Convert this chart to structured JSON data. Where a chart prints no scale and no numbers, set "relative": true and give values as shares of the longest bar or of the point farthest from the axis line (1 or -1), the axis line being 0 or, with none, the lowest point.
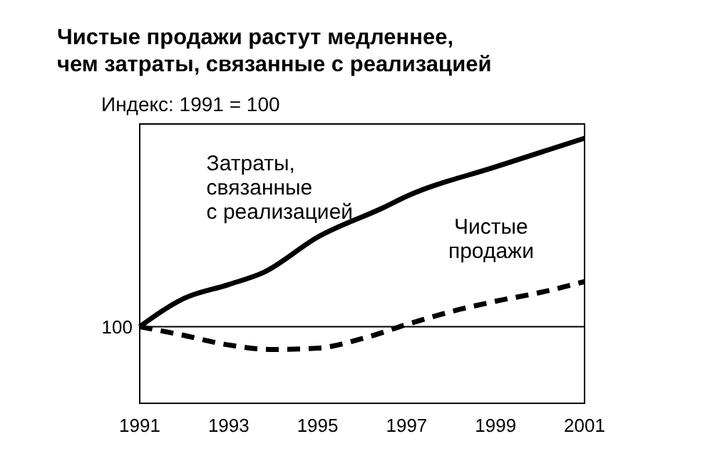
{
  "chart_data": {
    "type": "line",
    "relative": true,
    "title": "Чистые продажи растут медленнее,\nчем затраты, связанные с реализацией",
    "ylabel": "Индекс: 1991 = 100",
    "xlim": [
      1991,
      2001
    ],
    "xticks": [
      1991,
      1993,
      1995,
      1997,
      1999,
      2001
    ],
    "grid": false,
    "marker": "none",
    "ref_lines": [
      {
        "axis": "y",
        "value": 0.289,
        "color": "#000000"
      }
    ],
    "annotations": [
      {
        "text": "100",
        "x": 1991,
        "y": 0.289
      }
    ],
    "series": [
      {
        "name": "Затраты,\nсвязанные\nс реализацией",
        "color": "#000000",
        "line_style": "solid",
        "x": [
          1991,
          1992,
          1993,
          1993.8,
          1995,
          1996.5,
          1997,
          1999,
          2001
        ],
        "values": [
          0.289,
          0.396,
          0.448,
          0.495,
          0.627,
          0.74,
          0.781,
          0.892,
          1
        ]
      },
      {
        "name": "Чистые\nпродажи",
        "color": "#000000",
        "line_style": "dashed",
        "x": [
          1991,
          1992,
          1993,
          1994,
          1995,
          1996,
          1997,
          1998,
          1999,
          2000,
          2001
        ],
        "values": [
          0.289,
          0.256,
          0.22,
          0.203,
          0.208,
          0.244,
          0.297,
          0.346,
          0.385,
          0.418,
          0.459
        ]
      }
    ]
  }
}
